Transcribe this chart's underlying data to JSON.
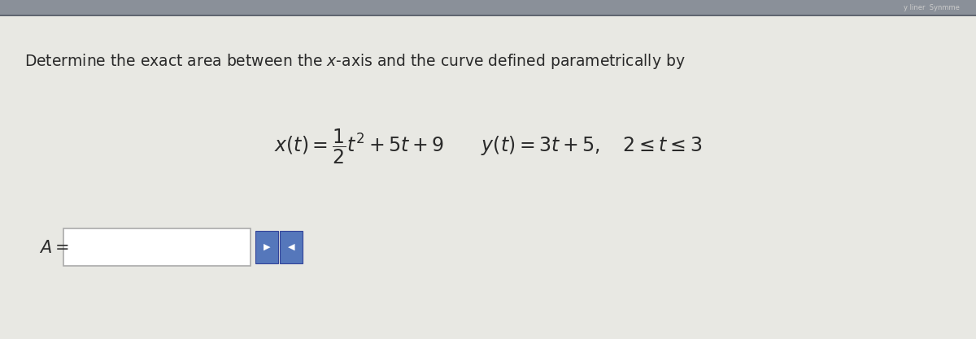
{
  "title_text": "Determine the exact area between the $\\mathit{x}$-axis and the curve defined parametrically by",
  "eq_text": "$x(t) = \\dfrac{1}{2}t^2 + 5t + 9 \\quad\\quad y(t) = 3t + 5, \\quad 2 \\leq t \\leq 3$",
  "answer_label": "$A =$",
  "bg_top_color": "#9aa0a8",
  "bg_main_color": "#e8e8e4",
  "text_color": "#2a2a2a",
  "input_box_facecolor": "#ffffff",
  "input_box_edgecolor": "#aaaaaa",
  "btn_color": "#5577bb",
  "btn_edge_color": "#334499",
  "title_fontsize": 13.5,
  "eq_fontsize": 17,
  "answer_fontsize": 14,
  "fig_width": 12.0,
  "fig_height": 4.17,
  "dpi": 100
}
